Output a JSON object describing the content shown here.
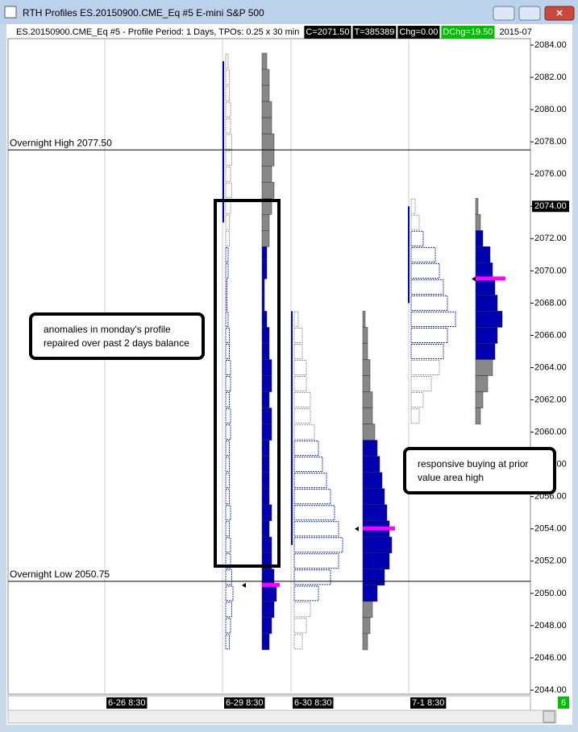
{
  "window": {
    "title": "RTH Profiles  ES.20150900.CME_Eq  #5  E-mini S&P 500"
  },
  "header": {
    "description": "ES.20150900.CME_Eq  #5 - Profile Period: 1 Days, TPOs: 0.25 x 30 min",
    "fields": [
      {
        "text": "C=2071.50",
        "color": "#000000"
      },
      {
        "text": "T=385389",
        "color": "#000000"
      },
      {
        "text": "Chg=0.00",
        "color": "#000000"
      },
      {
        "text": "DChg=19.50",
        "color": "#00c000"
      }
    ],
    "date": "2015-07"
  },
  "chart_data": {
    "type": "market_profile",
    "ylim": [
      2043.75,
      2084.4
    ],
    "yticks": [
      {
        "value": 2084,
        "label": "2084.00"
      },
      {
        "value": 2082,
        "label": "2082.00"
      },
      {
        "value": 2080,
        "label": "2080.00"
      },
      {
        "value": 2078,
        "label": "2078.00"
      },
      {
        "value": 2076,
        "label": "2076.00"
      },
      {
        "value": 2074,
        "label": "2074.00"
      },
      {
        "value": 2072,
        "label": "2072.00"
      },
      {
        "value": 2070,
        "label": "2070.00"
      },
      {
        "value": 2068,
        "label": "2068.00"
      },
      {
        "value": 2066,
        "label": "2066.00"
      },
      {
        "value": 2064,
        "label": "2064.00"
      },
      {
        "value": 2062,
        "label": "2062.00"
      },
      {
        "value": 2060,
        "label": "2060.00"
      },
      {
        "value": 2058,
        "label": "2058.00"
      },
      {
        "value": 2056,
        "label": "2056.00"
      },
      {
        "value": 2054,
        "label": "2054.00"
      },
      {
        "value": 2052,
        "label": "2052.00"
      },
      {
        "value": 2050,
        "label": "2050.00"
      },
      {
        "value": 2048,
        "label": "2048.00"
      },
      {
        "value": 2046,
        "label": "2046.00"
      },
      {
        "value": 2044,
        "label": "2044.00"
      }
    ],
    "highlight_tick": 2074,
    "categories": [
      "6-26  8:30",
      "6-29  8:30",
      "6-30  8:30",
      "7-1  8:30"
    ],
    "levels": [
      {
        "label": "Overnight High  2077.50",
        "value": 2077.5
      },
      {
        "label": "Overnight Low  2050.75",
        "value": 2050.75
      }
    ],
    "profiles": [
      {
        "session": 1,
        "top": 2083,
        "counts": [
          2,
          3,
          3,
          4,
          4,
          5,
          5,
          4,
          5,
          4,
          3,
          3,
          2,
          2,
          1,
          1,
          2,
          3,
          3,
          4,
          4,
          3,
          4,
          4,
          3,
          3,
          3,
          3,
          4,
          3,
          4,
          4,
          5,
          6,
          5,
          4,
          3
        ],
        "va": [
          2047,
          2071.5
        ],
        "poc": 2050.5,
        "ib": [
          2073,
          2083
        ]
      },
      {
        "session": 2,
        "top": 2067,
        "counts": [
          1,
          2,
          2,
          3,
          3,
          4,
          4,
          5,
          6,
          7,
          8,
          9,
          10,
          11,
          12,
          11,
          9,
          6,
          4,
          3,
          2
        ],
        "va": [
          2049.5,
          2059.5
        ],
        "poc": 2054,
        "ib": [
          2053,
          2067.5
        ]
      },
      {
        "session": 3,
        "top": 2074,
        "counts": [
          1,
          2,
          3,
          6,
          7,
          8,
          9,
          11,
          9,
          8,
          7,
          5,
          3,
          2
        ],
        "va": [
          2065,
          2072
        ],
        "poc": 2069.5,
        "ib": [
          2068,
          2074
        ]
      }
    ],
    "annotations": [
      {
        "lines": [
          "anomalies in monday's profile",
          "repaired over past 2 days balance"
        ]
      },
      {
        "lines": [
          "responsive buying at prior",
          "value area high"
        ]
      }
    ],
    "page_badge": "6"
  }
}
